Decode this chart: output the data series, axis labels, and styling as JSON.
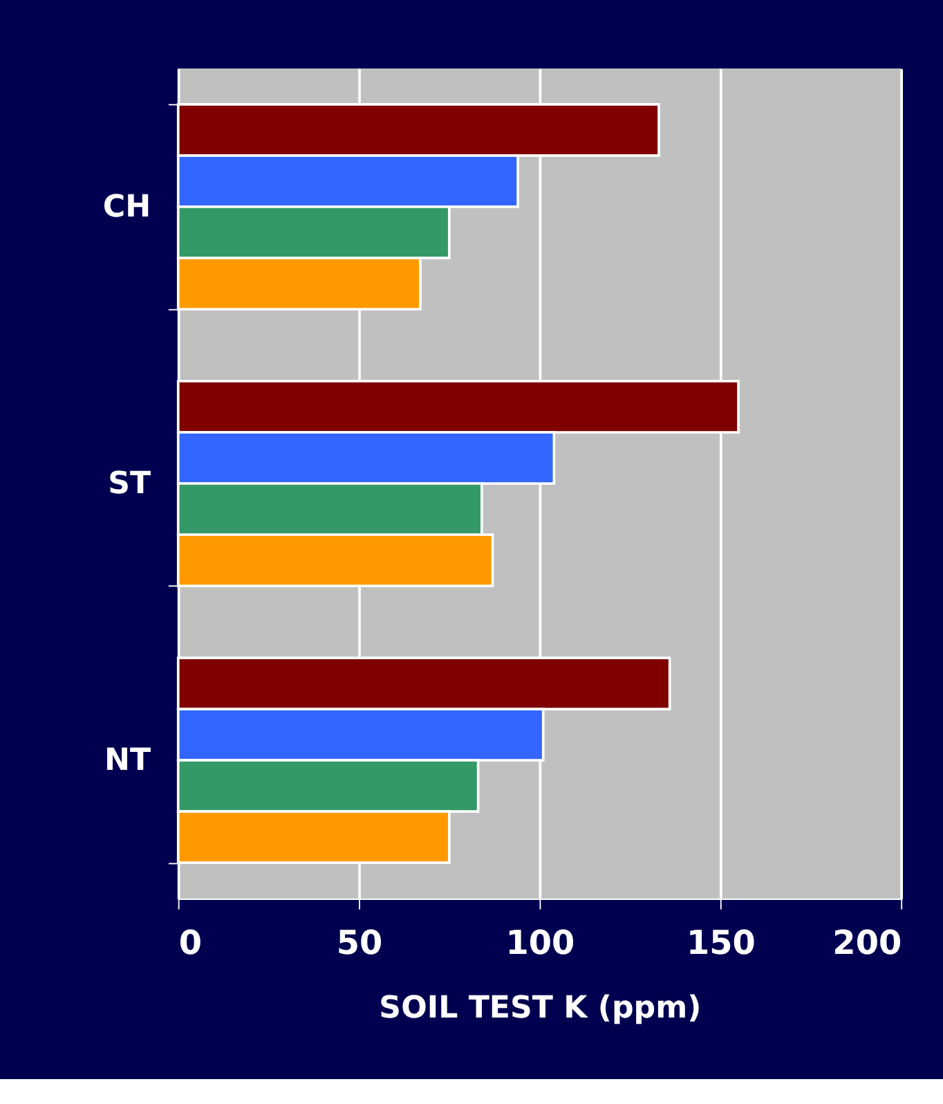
{
  "chart_data": {
    "type": "bar",
    "orientation": "horizontal",
    "xlabel": "SOIL TEST K (ppm)",
    "categories": [
      "CH",
      "ST",
      "NT"
    ],
    "series": [
      {
        "color": "#800000",
        "values": [
          133,
          155,
          136
        ]
      },
      {
        "color": "#3366ff",
        "values": [
          94,
          104,
          101
        ]
      },
      {
        "color": "#339966",
        "values": [
          75,
          84,
          83
        ]
      },
      {
        "color": "#ff9900",
        "values": [
          67,
          87,
          75
        ]
      }
    ],
    "xlim": [
      0,
      200
    ],
    "xticks": [
      0,
      50,
      100,
      150,
      200
    ],
    "grid": "x"
  }
}
